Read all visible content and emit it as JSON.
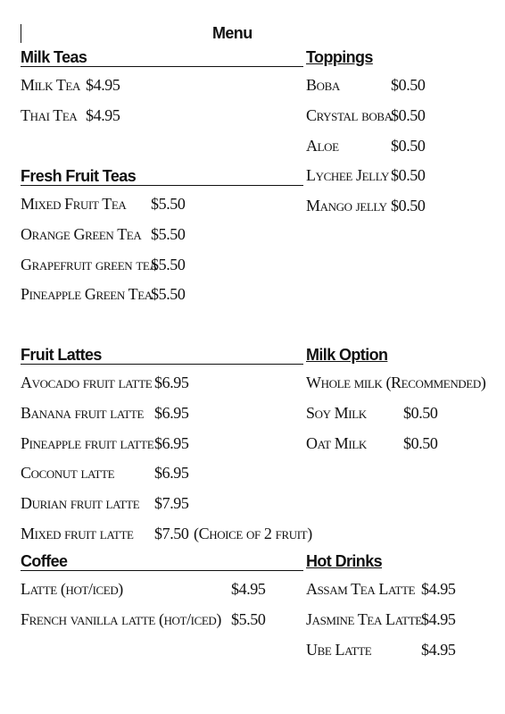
{
  "title": "Menu",
  "sections": [
    {
      "title": "Milk Teas",
      "items": [
        {
          "name": "Milk Tea",
          "price": "$4.95"
        },
        {
          "name": "Thai Tea",
          "price": "$4.95"
        }
      ]
    },
    {
      "title": "Toppings",
      "items": [
        {
          "name": "Boba",
          "price": "$0.50"
        },
        {
          "name": "Crystal boba",
          "price": "$0.50"
        },
        {
          "name": "Aloe",
          "price": "$0.50"
        },
        {
          "name": "Lychee Jelly",
          "price": "$0.50"
        },
        {
          "name": "Mango jelly",
          "price": "$0.50"
        }
      ]
    },
    {
      "title": "Fresh Fruit Teas",
      "items": [
        {
          "name": "Mixed Fruit Tea",
          "price": "$5.50"
        },
        {
          "name": "Orange Green Tea",
          "price": "$5.50"
        },
        {
          "name": "Grapefruit green tea",
          "price": "$5.50"
        },
        {
          "name": "Pineapple Green Tea",
          "price": "$5.50"
        }
      ]
    },
    {
      "title": "Fruit Lattes",
      "items": [
        {
          "name": "Avocado fruit latte",
          "price": "$6.95"
        },
        {
          "name": "Banana fruit latte",
          "price": "$6.95"
        },
        {
          "name": "Pineapple fruit latte",
          "price": "$6.95"
        },
        {
          "name": "Coconut latte",
          "price": "$6.95"
        },
        {
          "name": "Durian fruit latte",
          "price": "$7.95"
        },
        {
          "name": "Mixed fruit latte",
          "price": "$7.50",
          "note": "(Choice of 2 fruit)"
        }
      ]
    },
    {
      "title": "Milk Option",
      "items": [
        {
          "name": "Whole milk (Recommended)"
        },
        {
          "name": "Soy Milk",
          "price": "$0.50"
        },
        {
          "name": "Oat Milk",
          "price": "$0.50"
        }
      ]
    },
    {
      "title": "Coffee",
      "items": [
        {
          "name": "Latte (hot/iced)",
          "price": "$4.95"
        },
        {
          "name": "French vanilla latte (hot/iced)",
          "price": "$5.50"
        }
      ]
    },
    {
      "title": "Hot Drinks",
      "items": [
        {
          "name": "Assam Tea Latte",
          "price": "$4.95"
        },
        {
          "name": "Jasmine Tea Latte",
          "price": "$4.95"
        },
        {
          "name": "Ube Latte",
          "price": "$4.95"
        }
      ]
    }
  ]
}
